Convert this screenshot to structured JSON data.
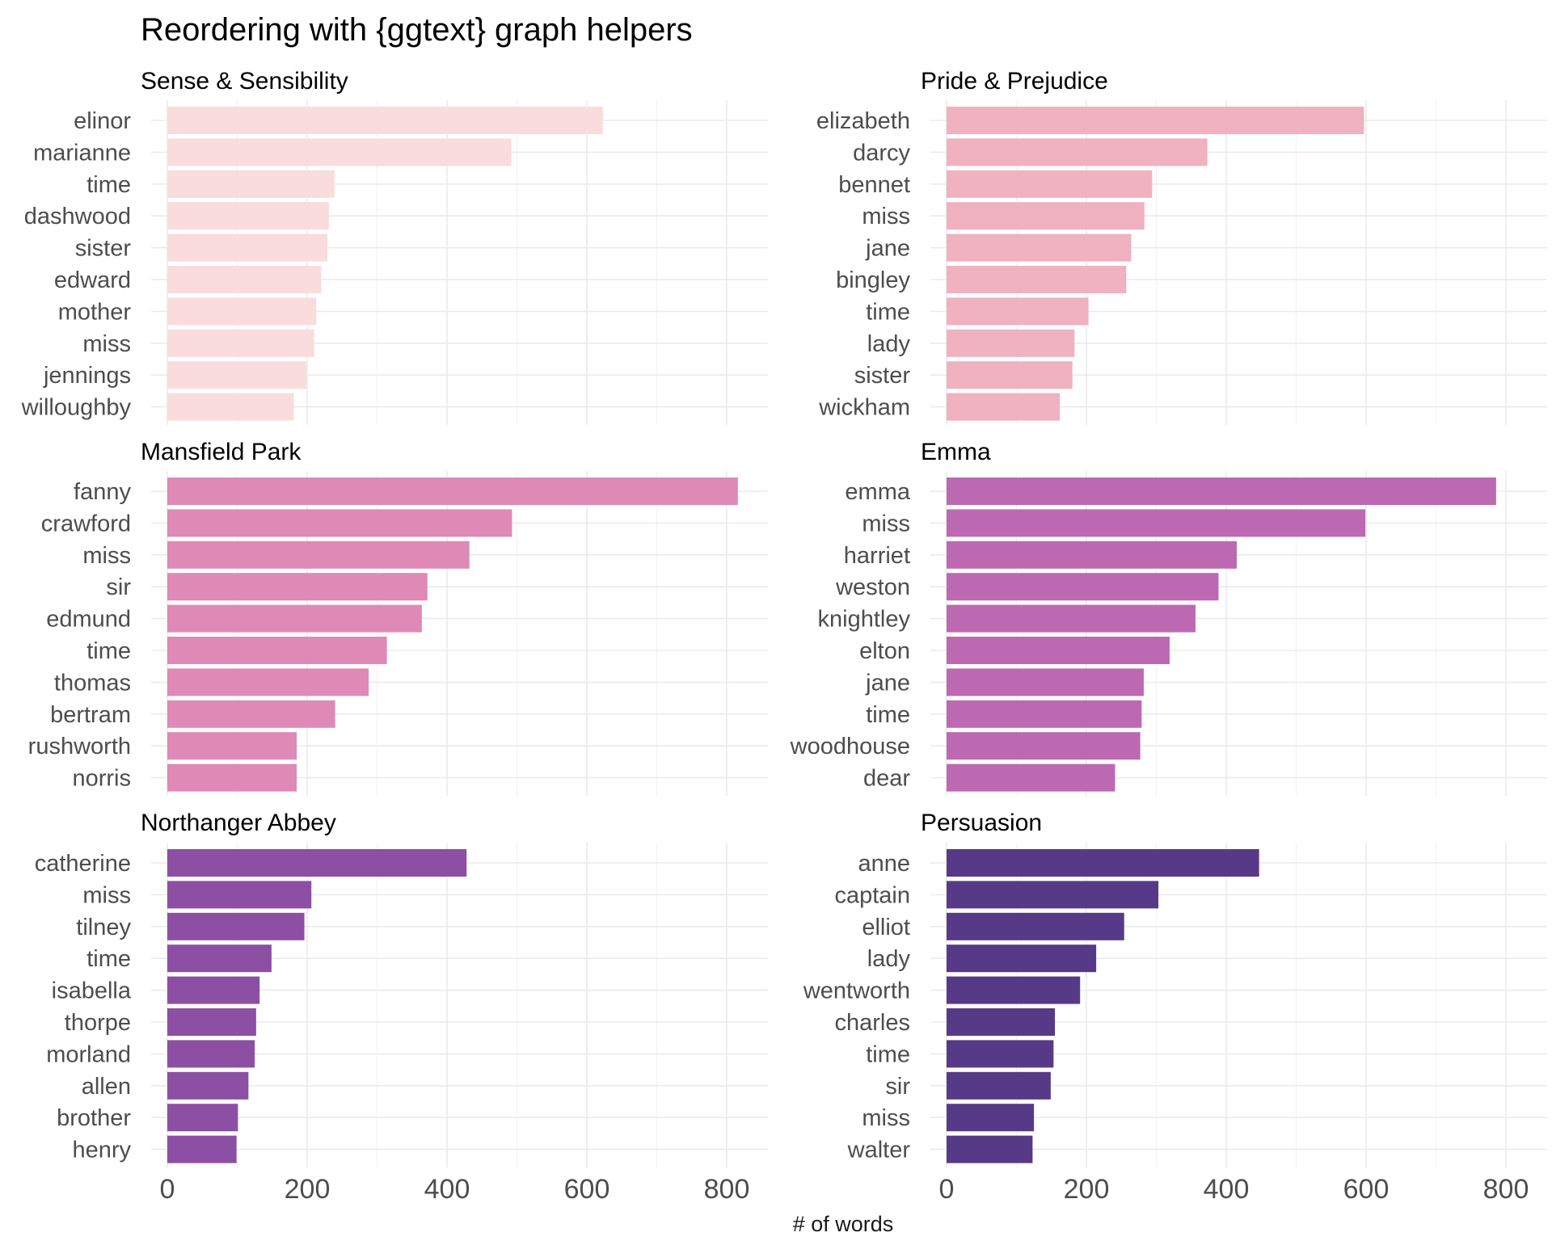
{
  "chart_data": {
    "type": "bar",
    "orientation": "horizontal",
    "title": "Reordering with {ggtext} graph helpers",
    "xlabel": "# of words",
    "ylabel": "",
    "xlim": [
      0,
      800
    ],
    "x_ticks": [
      "0",
      "200",
      "400",
      "600",
      "800"
    ],
    "grid": true,
    "legend": "none",
    "facets": [
      {
        "title": "Sense & Sensibility",
        "color": "#f9dcdb",
        "categories": [
          "elinor",
          "marianne",
          "time",
          "dashwood",
          "sister",
          "edward",
          "mother",
          "miss",
          "jennings",
          "willoughby"
        ],
        "values": [
          623,
          492,
          239,
          231,
          229,
          220,
          213,
          210,
          199,
          181
        ]
      },
      {
        "title": "Pride & Prejudice",
        "color": "#f0b1c1",
        "categories": [
          "elizabeth",
          "darcy",
          "bennet",
          "miss",
          "jane",
          "bingley",
          "time",
          "lady",
          "sister",
          "wickham"
        ],
        "values": [
          597,
          373,
          294,
          283,
          264,
          257,
          203,
          183,
          180,
          162
        ]
      },
      {
        "title": "Mansfield Park",
        "color": "#df89b6",
        "categories": [
          "fanny",
          "crawford",
          "miss",
          "sir",
          "edmund",
          "time",
          "thomas",
          "bertram",
          "rushworth",
          "norris"
        ],
        "values": [
          816,
          493,
          432,
          372,
          364,
          314,
          288,
          240,
          185,
          185
        ]
      },
      {
        "title": "Emma",
        "color": "#bc69b2",
        "categories": [
          "emma",
          "miss",
          "harriet",
          "weston",
          "knightley",
          "elton",
          "jane",
          "time",
          "woodhouse",
          "dear"
        ],
        "values": [
          786,
          599,
          415,
          389,
          356,
          319,
          282,
          279,
          277,
          241
        ]
      },
      {
        "title": "Northanger Abbey",
        "color": "#8c4fa3",
        "categories": [
          "catherine",
          "miss",
          "tilney",
          "time",
          "isabella",
          "thorpe",
          "morland",
          "allen",
          "brother",
          "henry"
        ],
        "values": [
          428,
          206,
          196,
          149,
          132,
          127,
          125,
          116,
          101,
          99
        ]
      },
      {
        "title": "Persuasion",
        "color": "#573a87",
        "categories": [
          "anne",
          "captain",
          "elliot",
          "lady",
          "wentworth",
          "charles",
          "time",
          "sir",
          "miss",
          "walter"
        ],
        "values": [
          447,
          303,
          254,
          214,
          191,
          155,
          153,
          149,
          125,
          123
        ]
      }
    ]
  }
}
